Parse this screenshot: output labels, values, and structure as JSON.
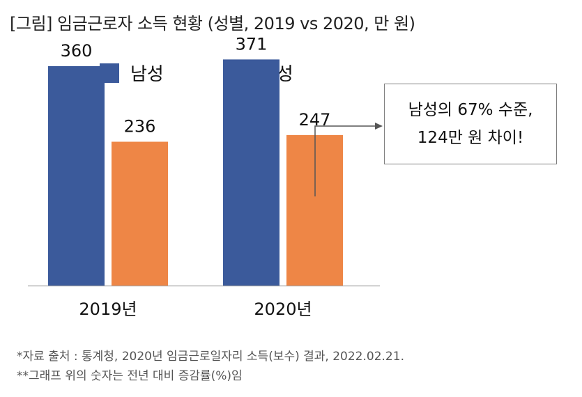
{
  "page_title": "[그림] 임금근로자 소득 현황 (성별, 2019 vs 2020, 만 원)",
  "chart_data": {
    "type": "bar",
    "title": "[그림] 임금근로자 소득 현황 (성별, 2019 vs 2020, 만 원)",
    "categories": [
      "2019년",
      "2020년"
    ],
    "series": [
      {
        "name": "남성",
        "values": [
          360,
          371
        ],
        "color": "#3b5a9b"
      },
      {
        "name": "여성",
        "values": [
          236,
          247
        ],
        "color": "#ee8646"
      }
    ],
    "ylim": [
      0,
      400
    ],
    "xlabel": "",
    "ylabel": "",
    "grid": false,
    "legend_position": "top"
  },
  "callout": {
    "line1": "남성의 67% 수준,",
    "line2": "124만 원 차이!"
  },
  "notes": [
    "*자료 출처 : 통계청, 2020년 임금근로일자리 소득(보수) 결과, 2022.02.21.",
    "**그래프 위의 숫자는 전년 대비 증감률(%)임"
  ]
}
